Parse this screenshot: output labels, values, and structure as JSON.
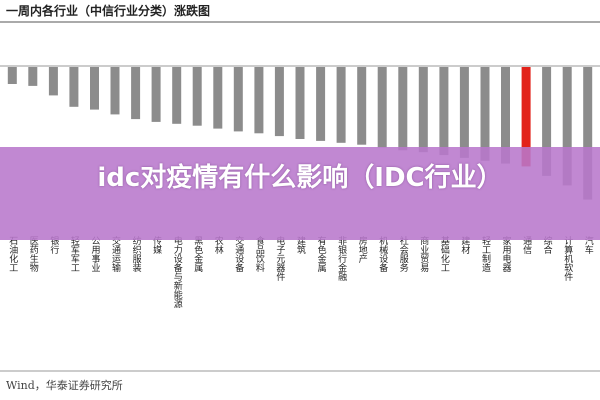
{
  "banner": {
    "text": "idc对疫情有什么影响（IDC行业）"
  },
  "source": "Wind，华泰证券研究所",
  "colors": {
    "bar": "#8c8c8c",
    "highlight": "#e2231a"
  },
  "chart_data": {
    "type": "bar",
    "title": "一周内各行业（中信行业分类）涨跌图",
    "xlabel": "",
    "ylabel": "",
    "highlight_category": "通信",
    "categories": [
      "石油化工",
      "医药生物",
      "银行",
      "轻军军工",
      "公用事业",
      "交通运输",
      "纺织服装",
      "传媒",
      "电力设备与新能源",
      "黑色金属",
      "农林",
      "交通设备",
      "食品饮料",
      "电子元器件",
      "建筑",
      "有色金属",
      "非银行金融",
      "房地产",
      "机械设备",
      "社会服务",
      "商业贸易",
      "基础化工",
      "建材",
      "轻工制造",
      "家用电器",
      "通信",
      "综合",
      "计算机软件",
      "汽车"
    ],
    "values": [
      -1.8,
      -2.0,
      -3.0,
      -4.2,
      -4.5,
      -5.0,
      -5.5,
      -5.8,
      -6.0,
      -6.2,
      -6.5,
      -6.8,
      -7.0,
      -7.3,
      -7.6,
      -7.8,
      -8.0,
      -8.2,
      -8.5,
      -8.8,
      -9.0,
      -9.3,
      -9.6,
      -9.9,
      -10.2,
      -10.5,
      -11.5,
      -12.5,
      -14.0
    ],
    "ylim": [
      -17,
      0
    ],
    "grid": false
  }
}
